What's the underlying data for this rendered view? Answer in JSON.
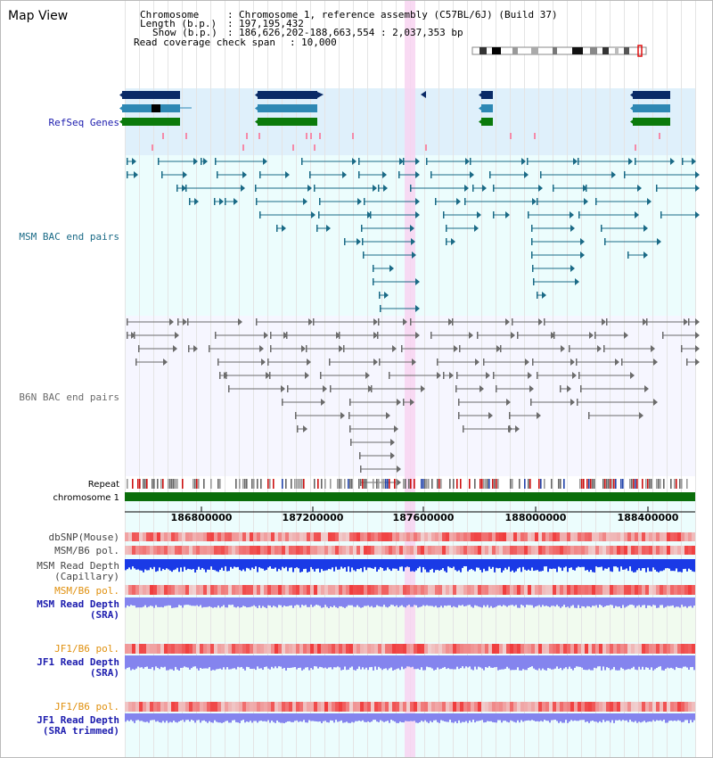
{
  "header": {
    "title": "Map View",
    "info_rows": [
      {
        "label": "Chromosome",
        "value": "Chromosome 1, reference assembly (C57BL/6J) (Build 37)"
      },
      {
        "label": "Length (b.p.)",
        "value": "197,195,432"
      },
      {
        "label": "Show (b.p.)",
        "value": "186,626,202-188,663,554 : 2,037,353 bp"
      },
      {
        "label": "Read coverage check span",
        "value": "10,000"
      }
    ]
  },
  "colors": {
    "refseq_bg": "#dff0fb",
    "msm_bg": "#ecfdfd",
    "b6n_bg": "#f6f6ff",
    "highlight": "#f8d4f1",
    "refseq_label": "#1c1cae",
    "msm_bac": "#1a6a86",
    "b6n_bac": "#6b6b6b",
    "chromosome": "#0b6e0b",
    "orange_label": "#e0900e",
    "blue_label": "#1c1cae",
    "snp": "#f07a7a",
    "depth_cap": "#1a3ae6",
    "depth_sra": "#8484ee"
  },
  "tracks": {
    "refseq_genes": "RefSeq Genes",
    "msm_bac": "MSM BAC end pairs",
    "b6n_bac": "B6N BAC end pairs",
    "repeat": "Repeat",
    "chromosome": "chromosome 1",
    "dbsnp": "dbSNP(Mouse)",
    "msm_b6_pol": "MSM/B6 pol.",
    "msm_depth_cap_1": "MSM Read Depth",
    "msm_depth_cap_2": "(Capillary)",
    "msm_b6_pol_2": "MSM/B6 pol.",
    "msm_depth_sra_1": "MSM Read Depth",
    "msm_depth_sra_2": "(SRA)",
    "jf1_b6_pol": "JF1/B6 pol.",
    "jf1_depth_sra_1": "JF1 Read Depth",
    "jf1_depth_sra_2": "(SRA)",
    "jf1_b6_pol_2": "JF1/B6 pol.",
    "jf1_depth_trim_1": "JF1 Read Depth",
    "jf1_depth_trim_2": "(SRA trimmed)"
  },
  "ruler": {
    "ticks": [
      "186800000",
      "187200000",
      "187600000",
      "188000000",
      "188400000"
    ]
  }
}
